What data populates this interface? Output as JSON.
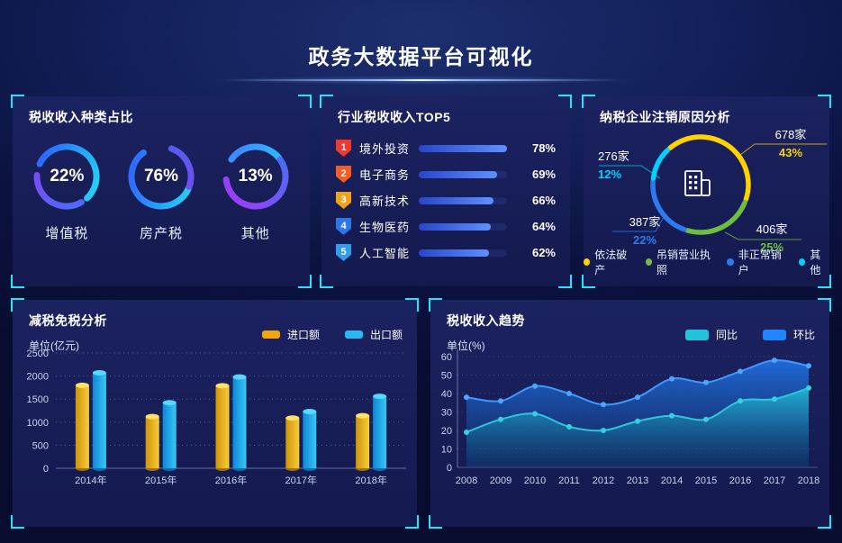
{
  "header": {
    "title": "政务大数据平台可视化"
  },
  "theme": {
    "background": "#0c1340",
    "panel": "#171c54",
    "bracket": "#1fe7f8",
    "axis_text": "#c9d4f2"
  },
  "chart_data": [
    {
      "id": "tax-type-gauges",
      "type": "pie",
      "title": "税收收入种类占比",
      "items": [
        {
          "label": "增值税",
          "pct": 22,
          "pct_label": "22%"
        },
        {
          "label": "房产税",
          "pct": 76,
          "pct_label": "76%"
        },
        {
          "label": "其他",
          "pct": 13,
          "pct_label": "13%"
        }
      ]
    },
    {
      "id": "industry-top5",
      "type": "bar",
      "orientation": "horizontal",
      "title": "行业税收收入TOP5",
      "items": [
        {
          "rank": "1",
          "label": "境外投资",
          "pct": 78,
          "pct_label": "78%",
          "badge_color": "#f2382e"
        },
        {
          "rank": "2",
          "label": "电子商务",
          "pct": 69,
          "pct_label": "69%",
          "badge_color": "#f55c26"
        },
        {
          "rank": "3",
          "label": "高新技术",
          "pct": 66,
          "pct_label": "66%",
          "badge_color": "#f2a316"
        },
        {
          "rank": "4",
          "label": "生物医药",
          "pct": 64,
          "pct_label": "64%",
          "badge_color": "#2b76e8"
        },
        {
          "rank": "5",
          "label": "人工智能",
          "pct": 62,
          "pct_label": "62%",
          "badge_color": "#2f9ded"
        }
      ]
    },
    {
      "id": "deregistration-donut",
      "type": "pie",
      "title": "纳税企业注销原因分析",
      "items": [
        {
          "label": "依法破产",
          "count": "678家",
          "pct": 43,
          "pct_label": "43%",
          "color": "#ffd200"
        },
        {
          "label": "吊销营业执照",
          "count": "406家",
          "pct": 25,
          "pct_label": "25%",
          "color": "#6fbf3e"
        },
        {
          "label": "非正常销户",
          "count": "387家",
          "pct": 22,
          "pct_label": "22%",
          "color": "#2e7bf0"
        },
        {
          "label": "其他",
          "count": "276家",
          "pct": 12,
          "pct_label": "12%",
          "color": "#00d2ff"
        }
      ]
    },
    {
      "id": "tax-reduction-bars",
      "type": "bar",
      "title": "减税免税分析",
      "ylabel": "单位(亿元)",
      "categories": [
        "2014年",
        "2015年",
        "2016年",
        "2017年",
        "2018年"
      ],
      "series": [
        {
          "name": "进口额",
          "color": "#f2a60e",
          "values": [
            1800,
            1120,
            1790,
            1090,
            1140
          ]
        },
        {
          "name": "出口额",
          "color": "#29b9f2",
          "values": [
            2070,
            1420,
            1980,
            1230,
            1560
          ]
        }
      ],
      "yticks": [
        0,
        500,
        1000,
        1500,
        2000,
        2500
      ],
      "ylim": [
        0,
        2500
      ],
      "grid": "dotted-horizontal",
      "legend_position": "top-right"
    },
    {
      "id": "tax-trend-area",
      "type": "area",
      "title": "税收收入趋势",
      "ylabel": "单位(%)",
      "x": [
        "2008",
        "2009",
        "2010",
        "2011",
        "2012",
        "2013",
        "2014",
        "2015",
        "2016",
        "2017",
        "2018"
      ],
      "series": [
        {
          "name": "同比",
          "color": "#24c2d8",
          "values": [
            19,
            26,
            29,
            22,
            20,
            25,
            28,
            26,
            36,
            37,
            43
          ]
        },
        {
          "name": "环比",
          "color": "#1f86ff",
          "values": [
            38,
            36,
            44,
            40,
            34,
            38,
            48,
            46,
            52,
            58,
            55
          ]
        }
      ],
      "yticks": [
        0,
        10,
        20,
        30,
        40,
        50,
        60
      ],
      "ylim": [
        0,
        60
      ],
      "grid": "dotted-horizontal",
      "legend_position": "top-right"
    }
  ]
}
